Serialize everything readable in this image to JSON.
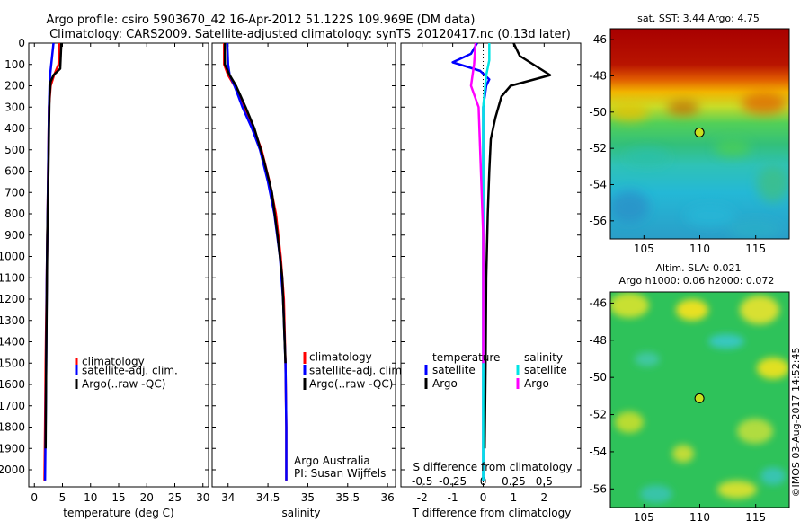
{
  "header": {
    "line1": "Argo profile: csiro 5903670_42 16-Apr-2012 51.122S 109.969E (DM data)",
    "line2": "Climatology: CARS2009. Satellite-adjusted climatology: synTS_20120417.nc (0.13d later)"
  },
  "footer": {
    "stamp": "©IMOS 03-Aug-2017 14:52:45",
    "institution": "Argo Australia",
    "pi": "PI: Susan Wijffels"
  },
  "colors": {
    "climatology": "#ff0000",
    "satellite_adj": "#0000ff",
    "argo": "#000000",
    "sat_salinity": "#00e5e5",
    "argo_salinity": "#ff00ff"
  },
  "chart_data": [
    {
      "type": "line",
      "id": "temperature",
      "xlabel": "temperature (deg C)",
      "ylabel": "",
      "xlim": [
        -1,
        31
      ],
      "ylim": [
        2080,
        0
      ],
      "xticks": [
        0,
        5,
        10,
        15,
        20,
        25,
        30
      ],
      "yticks": [
        0,
        100,
        200,
        300,
        400,
        500,
        600,
        700,
        800,
        900,
        1000,
        1100,
        1200,
        1300,
        1400,
        1500,
        1600,
        1700,
        1800,
        1900,
        2000
      ],
      "legend": [
        "climatology",
        "satellite-adj. clim.",
        "Argo(..raw -QC)"
      ],
      "legend_position": "lower-center",
      "series": [
        {
          "name": "climatology",
          "color": "#ff0000",
          "x": [
            4.4,
            4.3,
            3.5,
            2.9,
            2.6,
            2.5,
            2.4,
            2.3,
            2.2,
            2.1,
            2.0,
            1.9,
            1.8
          ],
          "y": [
            0,
            100,
            150,
            200,
            300,
            500,
            700,
            900,
            1100,
            1300,
            1500,
            1800,
            2050
          ]
        },
        {
          "name": "satellite-adj. clim.",
          "color": "#0000ff",
          "x": [
            3.4,
            3.2,
            3.0,
            2.8,
            2.7,
            2.6,
            2.5,
            2.4,
            2.3,
            2.2,
            2.1,
            2.0,
            1.9
          ],
          "y": [
            0,
            50,
            100,
            150,
            200,
            300,
            500,
            700,
            900,
            1100,
            1500,
            1800,
            2050
          ]
        },
        {
          "name": "Argo(..raw -QC)",
          "color": "#000000",
          "x": [
            4.8,
            4.7,
            4.6,
            3.4,
            2.9,
            2.7,
            2.6,
            2.5,
            2.3,
            2.2,
            2.1,
            2.0
          ],
          "y": [
            0,
            60,
            120,
            150,
            180,
            250,
            400,
            600,
            900,
            1200,
            1500,
            1900
          ]
        }
      ]
    },
    {
      "type": "line",
      "id": "salinity",
      "xlabel": "salinity",
      "ylabel": "",
      "xlim": [
        33.8,
        36.1
      ],
      "ylim": [
        2080,
        0
      ],
      "xticks": [
        34,
        34.5,
        35,
        35.5,
        36
      ],
      "legend": [
        "climatology",
        "satellite-adj. clim.",
        "Argo(..raw -QC)"
      ],
      "legend_position": "lower-center",
      "series": [
        {
          "name": "climatology",
          "color": "#ff0000",
          "x": [
            33.95,
            33.95,
            34.0,
            34.08,
            34.2,
            34.32,
            34.42,
            34.52,
            34.6,
            34.66,
            34.7,
            34.72,
            34.73,
            34.73
          ],
          "y": [
            0,
            100,
            150,
            200,
            300,
            400,
            500,
            650,
            800,
            1000,
            1200,
            1500,
            1800,
            2050
          ]
        },
        {
          "name": "satellite-adj. clim.",
          "color": "#0000ff",
          "x": [
            33.99,
            34.0,
            34.02,
            34.08,
            34.18,
            34.3,
            34.4,
            34.5,
            34.58,
            34.65,
            34.69,
            34.72,
            34.73,
            34.73
          ],
          "y": [
            0,
            100,
            150,
            200,
            300,
            400,
            500,
            650,
            800,
            1000,
            1200,
            1500,
            1800,
            2050
          ]
        },
        {
          "name": "Argo(..raw -QC)",
          "color": "#000000",
          "x": [
            33.96,
            33.96,
            34.02,
            34.1,
            34.22,
            34.33,
            34.45,
            34.55,
            34.62,
            34.68,
            34.7,
            34.72
          ],
          "y": [
            0,
            100,
            150,
            200,
            300,
            400,
            550,
            700,
            900,
            1100,
            1300,
            1500
          ]
        }
      ]
    },
    {
      "type": "line",
      "id": "difference",
      "xlabel": "T difference from climatology",
      "x2label": "S difference from climatology",
      "xlim": [
        -2.7,
        3.2
      ],
      "ylim": [
        2080,
        0
      ],
      "xticks": [
        -2,
        -1,
        0,
        1,
        2
      ],
      "x2ticks": [
        -0.5,
        -0.25,
        0,
        0.25,
        0.5
      ],
      "x2ticklabels": [
        "-0.5",
        "-0.25",
        "0",
        "0.25",
        "0.5"
      ],
      "legend_groups": [
        {
          "title": "temperature",
          "items": [
            "satellite",
            "Argo"
          ]
        },
        {
          "title": "salinity",
          "items": [
            "satellite",
            "Argo"
          ]
        }
      ],
      "series": [
        {
          "name": "temperature satellite",
          "color": "#0000ff",
          "x": [
            -0.2,
            -0.4,
            -1.0,
            -0.1,
            0.2,
            0.1,
            0.0,
            0.0,
            0.0,
            0.0,
            0.0,
            0.0,
            0.0
          ],
          "y": [
            0,
            50,
            90,
            130,
            170,
            200,
            300,
            500,
            700,
            1000,
            1300,
            1700,
            2050
          ]
        },
        {
          "name": "temperature Argo",
          "color": "#000000",
          "x": [
            1.0,
            1.2,
            2.2,
            0.9,
            0.6,
            0.4,
            0.25,
            0.2,
            0.15,
            0.1,
            0.08,
            0.05
          ],
          "y": [
            0,
            60,
            150,
            200,
            250,
            350,
            450,
            600,
            800,
            1100,
            1500,
            1900
          ]
        },
        {
          "name": "salinity satellite",
          "color": "#00e5e5",
          "x": [
            0.2,
            0.2,
            0.1,
            0.0,
            0.0,
            0.0,
            0.0,
            0.0,
            0.0
          ],
          "y": [
            0,
            80,
            150,
            300,
            600,
            900,
            1200,
            1600,
            2050
          ]
        },
        {
          "name": "salinity Argo",
          "color": "#ff00ff",
          "x": [
            -0.25,
            -0.3,
            -0.4,
            -0.15,
            -0.1,
            -0.05,
            0.0,
            0.0
          ],
          "y": [
            0,
            100,
            200,
            300,
            500,
            700,
            900,
            1500
          ]
        }
      ]
    },
    {
      "type": "heatmap",
      "id": "sst-map",
      "title": "sat. SST: 3.44 Argo: 4.75",
      "xlim": [
        102,
        118
      ],
      "ylim": [
        -57,
        -45.4
      ],
      "xticks": [
        105,
        110,
        115
      ],
      "yticks": [
        -46,
        -48,
        -50,
        -52,
        -54,
        -56
      ],
      "marker": {
        "lon": 109.969,
        "lat": -51.122
      }
    },
    {
      "type": "heatmap",
      "id": "sla-map",
      "title": "Altim. SLA: 0.021",
      "subtitle": "Argo h1000: 0.06 h2000: 0.072",
      "xlim": [
        102,
        118
      ],
      "ylim": [
        -57,
        -45.4
      ],
      "xticks": [
        105,
        110,
        115
      ],
      "yticks": [
        -46,
        -48,
        -50,
        -52,
        -54,
        -56
      ],
      "marker": {
        "lon": 109.969,
        "lat": -51.122
      }
    }
  ]
}
